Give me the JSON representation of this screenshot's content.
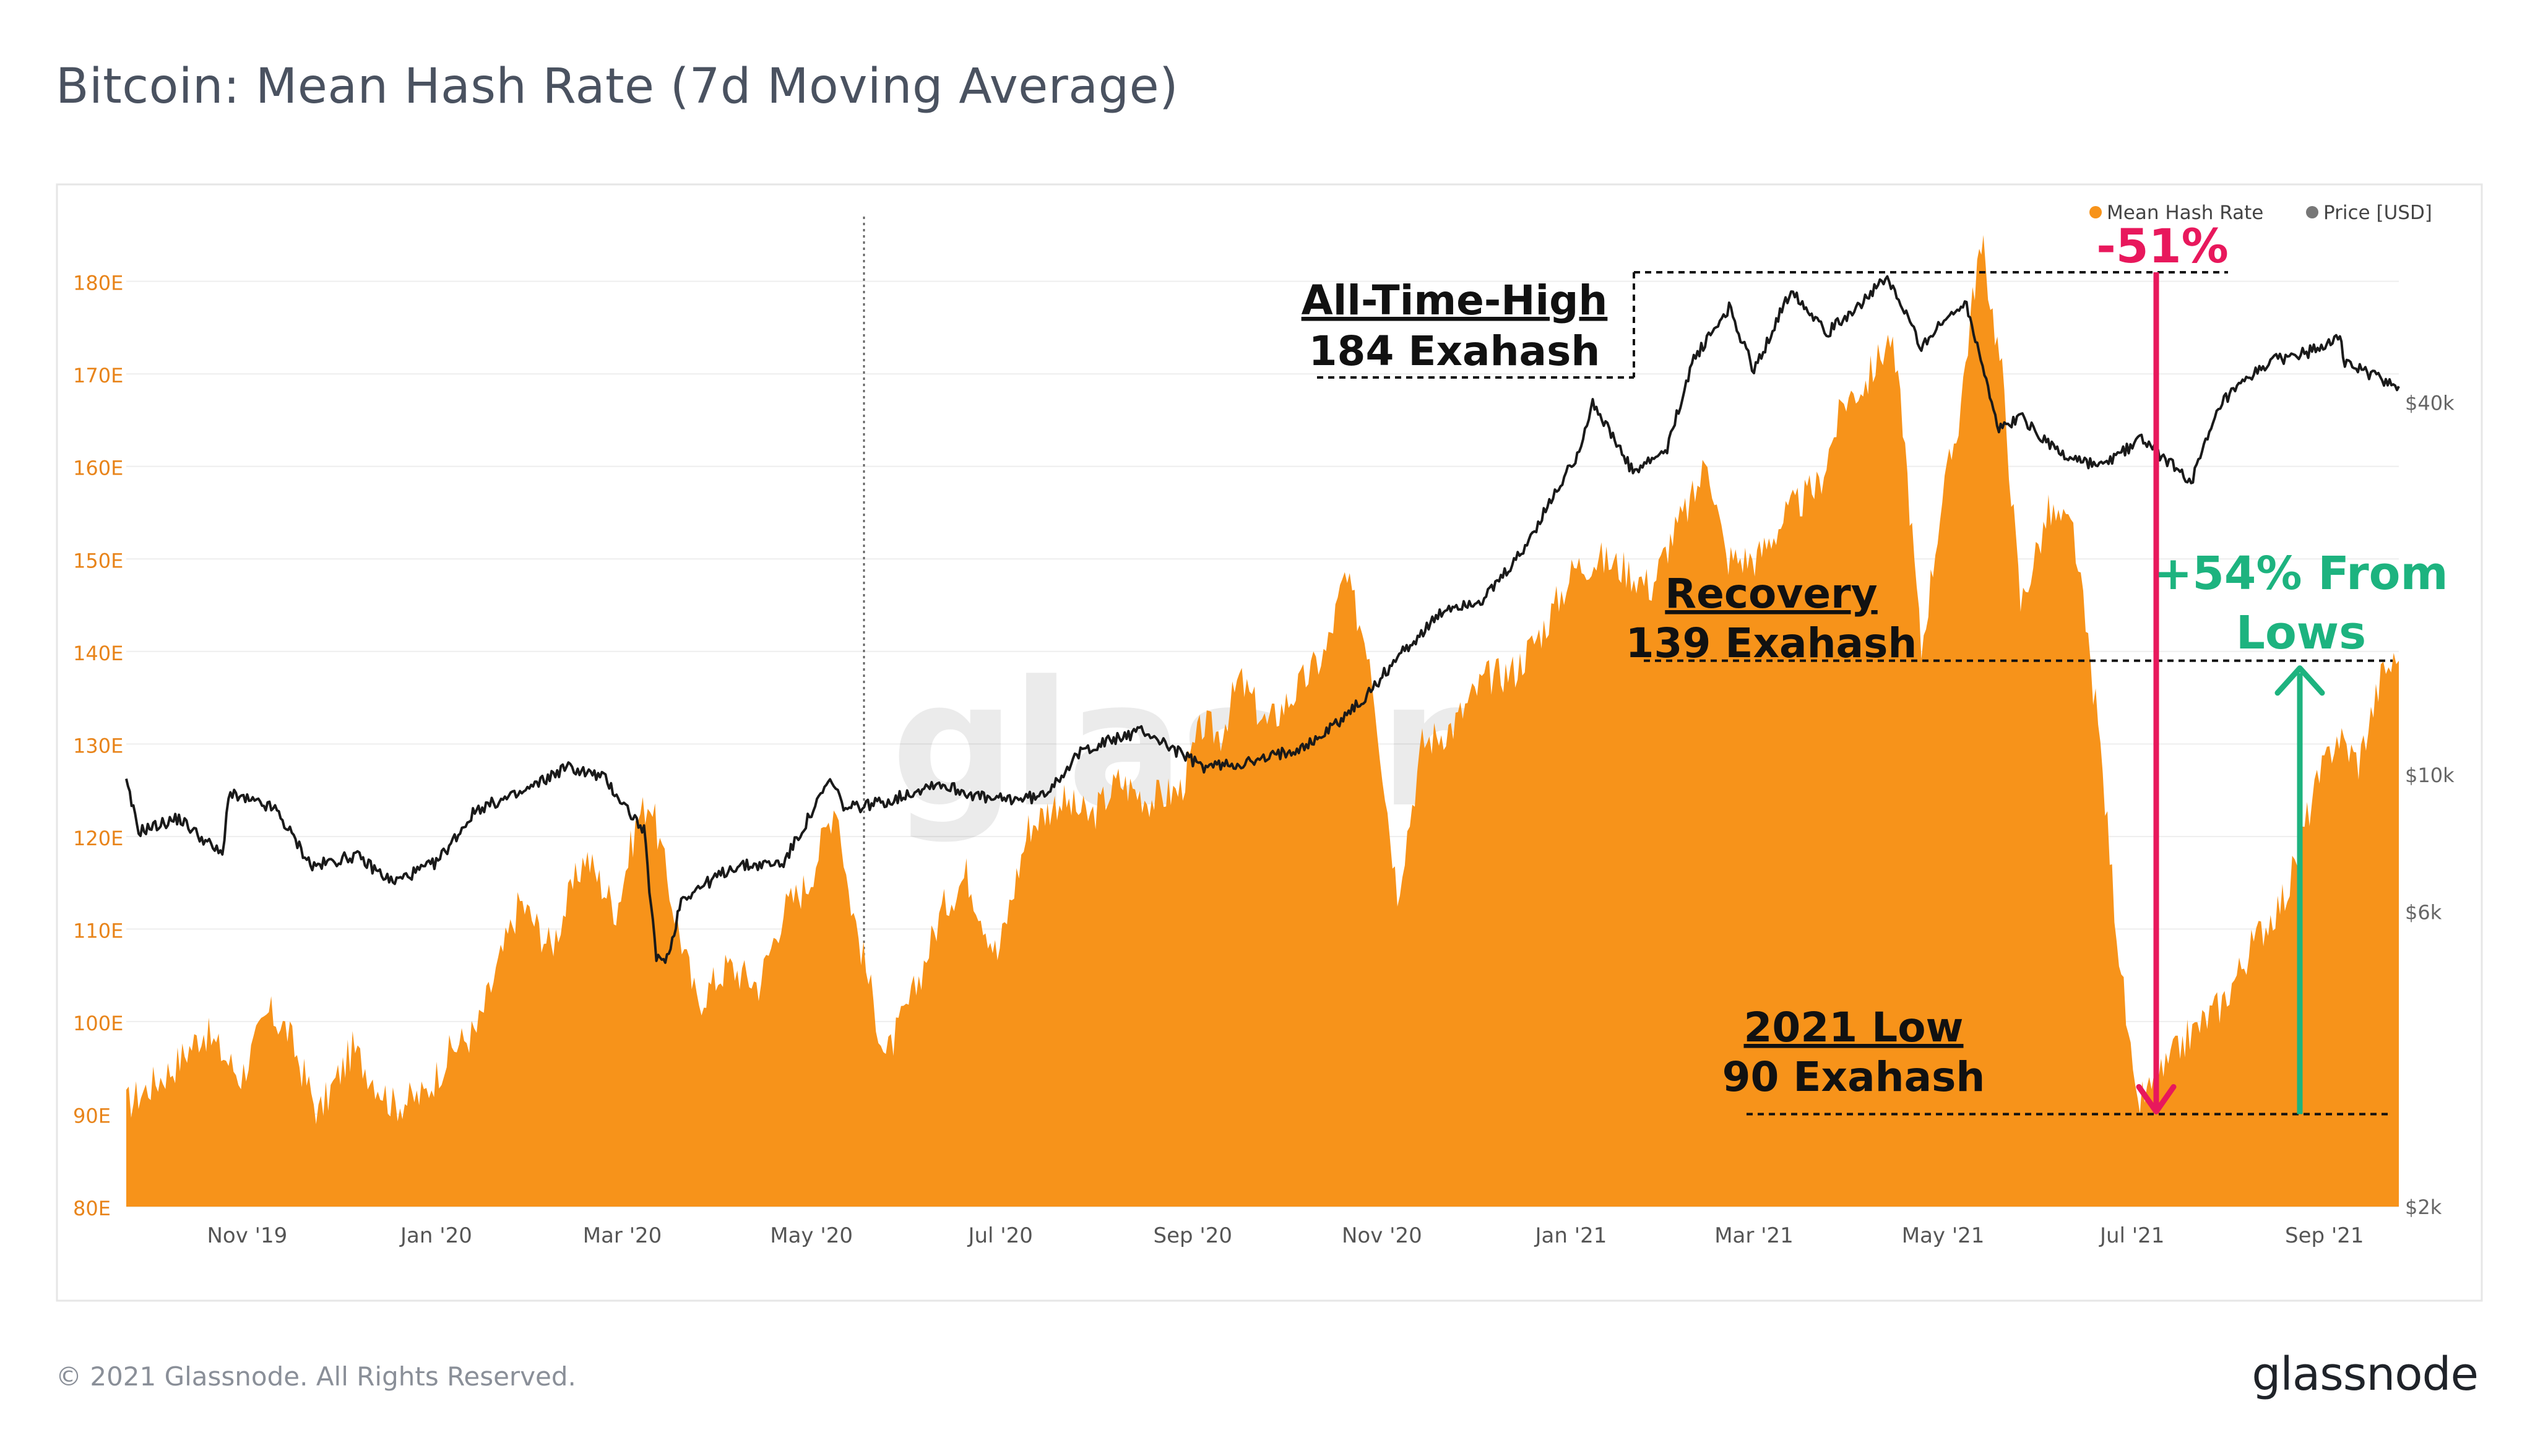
{
  "page": {
    "title": "Bitcoin: Mean Hash Rate (7d Moving Average)",
    "copyright": "© 2021 Glassnode. All Rights Reserved.",
    "logo": "glassnode",
    "watermark": "glassnode"
  },
  "colors": {
    "hash_fill": "#F7931A",
    "price_line": "#1a1a1a",
    "left_axis_text": "#E8841A",
    "right_axis_text": "#666666",
    "annotation_pink": "#E8185C",
    "annotation_green": "#1DB37F"
  },
  "chart_data": {
    "type": "area",
    "legend": {
      "placement": "top-right",
      "items": [
        {
          "label": "Mean Hash Rate",
          "color": "#F7931A"
        },
        {
          "label": "Price [USD]",
          "color": "#777777"
        }
      ]
    },
    "x_ticks": [
      "Nov '19",
      "Jan '20",
      "Mar '20",
      "May '20",
      "Jul '20",
      "Sep '20",
      "Nov '20",
      "Jan '21",
      "Mar '21",
      "May '21",
      "Jul '21",
      "Sep '21"
    ],
    "x_range": [
      "2019-09-23",
      "2021-09-25"
    ],
    "y_left": {
      "ticks": [
        "80E",
        "90E",
        "100E",
        "110E",
        "120E",
        "130E",
        "140E",
        "150E",
        "160E",
        "170E",
        "180E"
      ],
      "range": [
        80,
        187
      ],
      "unit": "EH/s"
    },
    "y_right": {
      "ticks": [
        "$2k",
        "$6k",
        "$10k",
        "$40k"
      ],
      "tick_values": [
        2000,
        6000,
        10000,
        40000
      ],
      "scale": "log",
      "range_usd": [
        2000,
        80000
      ]
    },
    "series": [
      {
        "name": "Mean Hash Rate",
        "kind": "area",
        "points": [
          [
            "2019-09-23",
            91
          ],
          [
            "2019-10-08",
            95
          ],
          [
            "2019-10-18",
            99
          ],
          [
            "2019-10-30",
            94
          ],
          [
            "2019-11-08",
            101
          ],
          [
            "2019-11-14",
            99
          ],
          [
            "2019-11-24",
            90
          ],
          [
            "2019-12-05",
            97
          ],
          [
            "2019-12-18",
            91
          ],
          [
            "2019-12-28",
            92
          ],
          [
            "2020-01-06",
            97
          ],
          [
            "2020-01-14",
            99
          ],
          [
            "2020-01-28",
            113
          ],
          [
            "2020-02-07",
            108
          ],
          [
            "2020-02-18",
            118
          ],
          [
            "2020-02-28",
            112
          ],
          [
            "2020-03-06",
            122
          ],
          [
            "2020-03-10",
            124
          ],
          [
            "2020-03-17",
            113
          ],
          [
            "2020-03-25",
            102
          ],
          [
            "2020-04-04",
            106
          ],
          [
            "2020-04-14",
            104
          ],
          [
            "2020-04-22",
            112
          ],
          [
            "2020-04-30",
            115
          ],
          [
            "2020-05-09",
            124
          ],
          [
            "2020-05-13",
            114
          ],
          [
            "2020-05-25",
            96
          ],
          [
            "2020-06-03",
            103
          ],
          [
            "2020-06-12",
            112
          ],
          [
            "2020-06-20",
            116
          ],
          [
            "2020-06-30",
            107
          ],
          [
            "2020-07-10",
            121
          ],
          [
            "2020-07-20",
            124
          ],
          [
            "2020-07-30",
            122
          ],
          [
            "2020-08-08",
            126
          ],
          [
            "2020-08-18",
            124
          ],
          [
            "2020-08-28",
            125
          ],
          [
            "2020-09-04",
            132
          ],
          [
            "2020-09-10",
            131
          ],
          [
            "2020-09-16",
            137
          ],
          [
            "2020-09-25",
            132
          ],
          [
            "2020-10-05",
            136
          ],
          [
            "2020-10-14",
            140
          ],
          [
            "2020-10-20",
            148
          ],
          [
            "2020-10-28",
            140
          ],
          [
            "2020-11-02",
            125
          ],
          [
            "2020-11-06",
            114
          ],
          [
            "2020-11-14",
            130
          ],
          [
            "2020-11-24",
            132
          ],
          [
            "2020-12-04",
            137
          ],
          [
            "2020-12-14",
            138
          ],
          [
            "2020-12-24",
            143
          ],
          [
            "2021-01-02",
            149
          ],
          [
            "2021-01-10",
            150
          ],
          [
            "2021-01-18",
            149
          ],
          [
            "2021-01-27",
            147
          ],
          [
            "2021-02-02",
            152
          ],
          [
            "2021-02-10",
            157
          ],
          [
            "2021-02-14",
            161
          ],
          [
            "2021-02-20",
            150
          ],
          [
            "2021-03-02",
            150
          ],
          [
            "2021-03-12",
            155
          ],
          [
            "2021-03-22",
            158
          ],
          [
            "2021-03-30",
            167
          ],
          [
            "2021-04-06",
            169
          ],
          [
            "2021-04-14",
            174
          ],
          [
            "2021-04-18",
            165
          ],
          [
            "2021-04-24",
            140
          ],
          [
            "2021-04-30",
            155
          ],
          [
            "2021-05-06",
            165
          ],
          [
            "2021-05-12",
            182
          ],
          [
            "2021-05-14",
            183
          ],
          [
            "2021-05-20",
            170
          ],
          [
            "2021-05-26",
            145
          ],
          [
            "2021-06-04",
            155
          ],
          [
            "2021-06-12",
            153
          ],
          [
            "2021-06-20",
            132
          ],
          [
            "2021-06-26",
            110
          ],
          [
            "2021-07-02",
            91
          ],
          [
            "2021-07-08",
            93
          ],
          [
            "2021-07-18",
            98
          ],
          [
            "2021-07-30",
            102
          ],
          [
            "2021-08-10",
            109
          ],
          [
            "2021-08-20",
            114
          ],
          [
            "2021-08-28",
            124
          ],
          [
            "2021-09-05",
            131
          ],
          [
            "2021-09-12",
            128
          ],
          [
            "2021-09-20",
            138
          ],
          [
            "2021-09-25",
            139
          ]
        ]
      },
      {
        "name": "Price [USD]",
        "kind": "line",
        "scale": "log",
        "points": [
          [
            "2019-09-23",
            9700
          ],
          [
            "2019-09-27",
            8100
          ],
          [
            "2019-10-10",
            8500
          ],
          [
            "2019-10-24",
            7400
          ],
          [
            "2019-10-26",
            9300
          ],
          [
            "2019-11-10",
            8800
          ],
          [
            "2019-11-22",
            7100
          ],
          [
            "2019-12-06",
            7400
          ],
          [
            "2019-12-18",
            6700
          ],
          [
            "2020-01-01",
            7200
          ],
          [
            "2020-01-14",
            8800
          ],
          [
            "2020-01-28",
            9300
          ],
          [
            "2020-02-12",
            10300
          ],
          [
            "2020-02-24",
            9900
          ],
          [
            "2020-03-08",
            8100
          ],
          [
            "2020-03-12",
            5000
          ],
          [
            "2020-03-16",
            5100
          ],
          [
            "2020-03-20",
            6300
          ],
          [
            "2020-04-06",
            7100
          ],
          [
            "2020-04-22",
            7200
          ],
          [
            "2020-05-07",
            9800
          ],
          [
            "2020-05-12",
            8800
          ],
          [
            "2020-05-27",
            9100
          ],
          [
            "2020-06-10",
            9700
          ],
          [
            "2020-06-28",
            9100
          ],
          [
            "2020-07-14",
            9200
          ],
          [
            "2020-07-28",
            11000
          ],
          [
            "2020-08-16",
            11800
          ],
          [
            "2020-09-04",
            10300
          ],
          [
            "2020-09-22",
            10500
          ],
          [
            "2020-10-10",
            11300
          ],
          [
            "2020-10-26",
            13200
          ],
          [
            "2020-11-06",
            15500
          ],
          [
            "2020-11-22",
            18600
          ],
          [
            "2020-12-04",
            19200
          ],
          [
            "2020-12-16",
            22800
          ],
          [
            "2021-01-03",
            33000
          ],
          [
            "2021-01-08",
            40000
          ],
          [
            "2021-01-21",
            30800
          ],
          [
            "2021-02-01",
            33500
          ],
          [
            "2021-02-09",
            46500
          ],
          [
            "2021-02-21",
            57000
          ],
          [
            "2021-03-01",
            45000
          ],
          [
            "2021-03-13",
            61000
          ],
          [
            "2021-03-25",
            52000
          ],
          [
            "2021-04-13",
            63500
          ],
          [
            "2021-04-24",
            49500
          ],
          [
            "2021-05-08",
            58500
          ],
          [
            "2021-05-12",
            50000
          ],
          [
            "2021-05-19",
            36000
          ],
          [
            "2021-05-26",
            38000
          ],
          [
            "2021-06-08",
            33000
          ],
          [
            "2021-06-21",
            31500
          ],
          [
            "2021-07-04",
            35000
          ],
          [
            "2021-07-20",
            29800
          ],
          [
            "2021-07-30",
            40000
          ],
          [
            "2021-08-14",
            46500
          ],
          [
            "2021-08-28",
            48500
          ],
          [
            "2021-09-06",
            51800
          ],
          [
            "2021-09-07",
            46500
          ],
          [
            "2021-09-25",
            42500
          ]
        ]
      }
    ],
    "annotations": [
      {
        "label_lines": [
          "All-Time-High",
          "184 Exahash"
        ],
        "value": 184,
        "date": "2021-05-14"
      },
      {
        "label_lines": [
          "Recovery",
          "139 Exahash"
        ],
        "value": 139,
        "date": "2021-09-20"
      },
      {
        "label_lines": [
          "2021 Low",
          "90 Exahash"
        ],
        "value": 90,
        "date": "2021-07-02"
      },
      {
        "label_lines": [
          "-51%"
        ],
        "kind": "drop-arrow",
        "from": 184,
        "to": 90
      },
      {
        "label_lines": [
          "+54% From",
          "Lows"
        ],
        "kind": "rise-arrow",
        "from": 90,
        "to": 139
      }
    ]
  }
}
